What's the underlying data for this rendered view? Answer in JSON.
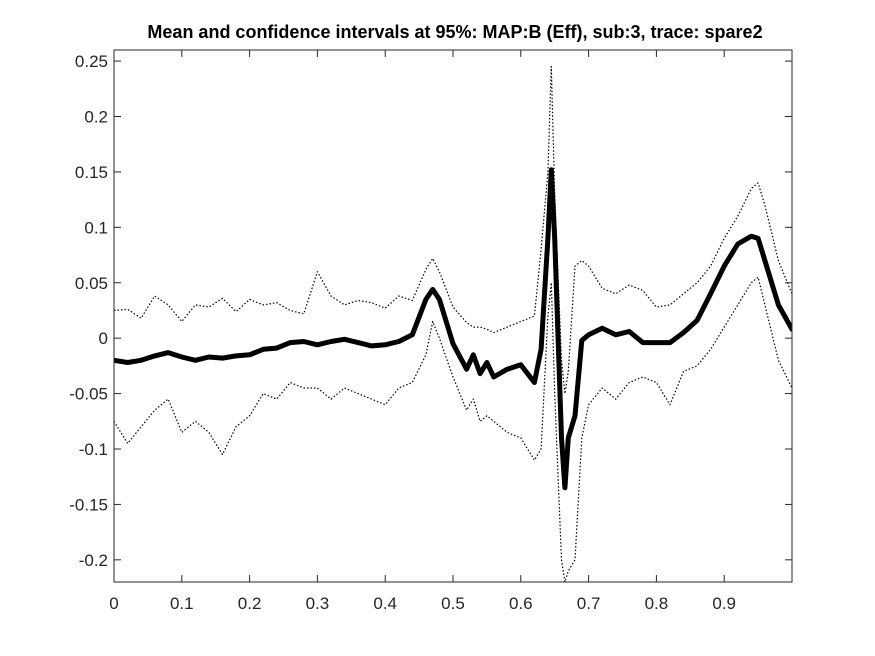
{
  "chart_data": {
    "type": "line",
    "title": "Mean and confidence intervals at 95%: MAP:B (Eff), sub:3, trace: spare2",
    "xlim": [
      0,
      1
    ],
    "ylim": [
      -0.22,
      0.26
    ],
    "xticks": [
      0,
      0.1,
      0.2,
      0.3,
      0.4,
      0.5,
      0.6,
      0.7,
      0.8,
      0.9
    ],
    "xtick_labels": [
      "0",
      "0.1",
      "0.2",
      "0.3",
      "0.4",
      "0.5",
      "0.6",
      "0.7",
      "0.8",
      "0.9"
    ],
    "yticks": [
      0.25,
      0.2,
      0.15,
      0.1,
      0.05,
      0,
      -0.05,
      -0.1,
      -0.15,
      -0.2
    ],
    "ytick_labels": [
      "0.25",
      "0.2",
      "0.15",
      "0.1",
      "0.05",
      "0",
      "-0.05",
      "-0.1",
      "-0.15",
      "-0.2"
    ],
    "grid": false,
    "x": [
      0,
      0.02,
      0.04,
      0.06,
      0.08,
      0.1,
      0.12,
      0.14,
      0.16,
      0.18,
      0.2,
      0.22,
      0.24,
      0.26,
      0.28,
      0.3,
      0.32,
      0.34,
      0.36,
      0.38,
      0.4,
      0.42,
      0.44,
      0.46,
      0.47,
      0.48,
      0.5,
      0.52,
      0.53,
      0.54,
      0.55,
      0.56,
      0.58,
      0.6,
      0.62,
      0.63,
      0.64,
      0.645,
      0.65,
      0.66,
      0.665,
      0.67,
      0.68,
      0.69,
      0.7,
      0.72,
      0.74,
      0.76,
      0.78,
      0.8,
      0.82,
      0.84,
      0.86,
      0.88,
      0.9,
      0.92,
      0.94,
      0.95,
      0.96,
      0.98,
      1.0
    ],
    "series": [
      {
        "style": "thick-solid",
        "color": "#000000",
        "values": [
          -0.02,
          -0.022,
          -0.02,
          -0.016,
          -0.013,
          -0.017,
          -0.02,
          -0.017,
          -0.018,
          -0.016,
          -0.015,
          -0.01,
          -0.009,
          -0.004,
          -0.003,
          -0.006,
          -0.003,
          -0.001,
          -0.004,
          -0.007,
          -0.006,
          -0.003,
          0.003,
          0.035,
          0.044,
          0.035,
          -0.005,
          -0.028,
          -0.015,
          -0.032,
          -0.022,
          -0.035,
          -0.028,
          -0.024,
          -0.04,
          -0.01,
          0.09,
          0.152,
          0.09,
          -0.09,
          -0.135,
          -0.09,
          -0.07,
          -0.002,
          0.003,
          0.009,
          0.003,
          0.006,
          -0.004,
          -0.004,
          -0.004,
          0.005,
          0.016,
          0.04,
          0.065,
          0.085,
          0.092,
          0.09,
          0.07,
          0.03,
          0.008
        ]
      },
      {
        "style": "dotted-upper",
        "color": "#000000",
        "values": [
          0.025,
          0.026,
          0.018,
          0.038,
          0.03,
          0.015,
          0.03,
          0.028,
          0.036,
          0.024,
          0.035,
          0.03,
          0.032,
          0.025,
          0.022,
          0.06,
          0.038,
          0.03,
          0.034,
          0.032,
          0.027,
          0.038,
          0.034,
          0.062,
          0.072,
          0.06,
          0.028,
          0.014,
          0.01,
          0.01,
          0.008,
          0.005,
          0.01,
          0.015,
          0.02,
          0.08,
          0.15,
          0.245,
          0.13,
          -0.02,
          -0.05,
          -0.03,
          0.065,
          0.07,
          0.065,
          0.045,
          0.04,
          0.048,
          0.043,
          0.028,
          0.03,
          0.04,
          0.05,
          0.065,
          0.09,
          0.11,
          0.135,
          0.14,
          0.12,
          0.07,
          0.04
        ]
      },
      {
        "style": "dotted-lower",
        "color": "#000000",
        "values": [
          -0.075,
          -0.095,
          -0.08,
          -0.065,
          -0.055,
          -0.085,
          -0.075,
          -0.085,
          -0.105,
          -0.08,
          -0.07,
          -0.05,
          -0.055,
          -0.04,
          -0.045,
          -0.045,
          -0.055,
          -0.045,
          -0.05,
          -0.055,
          -0.06,
          -0.045,
          -0.04,
          -0.015,
          0.015,
          0.0,
          -0.035,
          -0.065,
          -0.055,
          -0.075,
          -0.07,
          -0.075,
          -0.085,
          -0.09,
          -0.11,
          -0.1,
          0.02,
          0.05,
          -0.05,
          -0.2,
          -0.22,
          -0.21,
          -0.2,
          -0.09,
          -0.06,
          -0.045,
          -0.055,
          -0.04,
          -0.035,
          -0.04,
          -0.06,
          -0.03,
          -0.025,
          -0.01,
          0.01,
          0.03,
          0.05,
          0.055,
          0.03,
          -0.02,
          -0.045
        ]
      }
    ]
  }
}
